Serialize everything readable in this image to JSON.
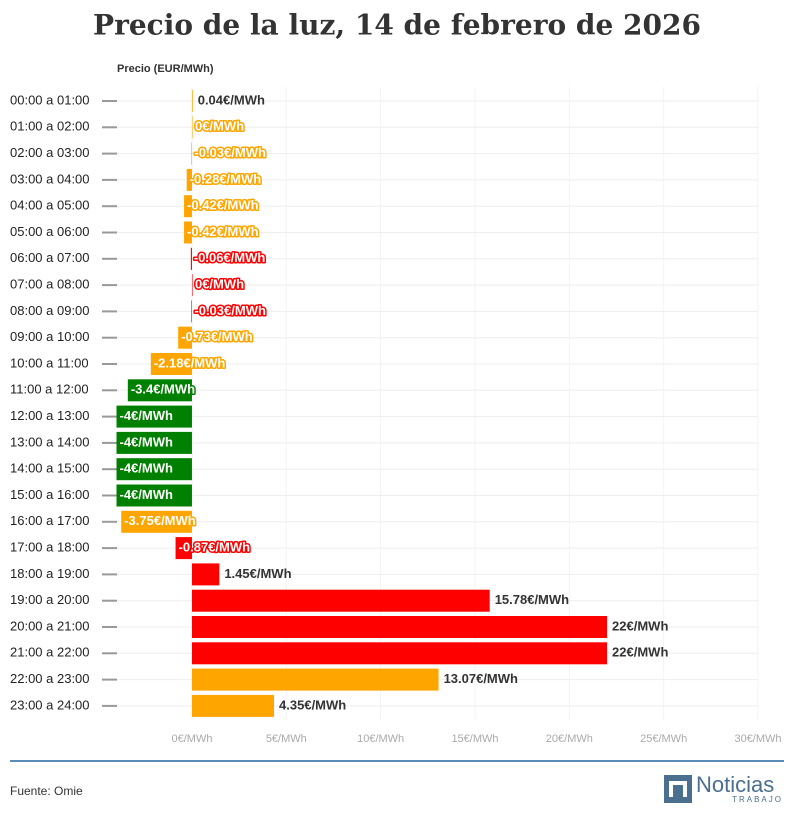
{
  "chart_data": {
    "type": "bar",
    "orientation": "horizontal",
    "title": "Precio de la luz, 14 de febrero de 2026",
    "x_label": "Precio (EUR/MWh)",
    "categories": [
      "00:00 a 01:00",
      "01:00 a 02:00",
      "02:00 a 03:00",
      "03:00 a 04:00",
      "04:00 a 05:00",
      "05:00 a 06:00",
      "06:00 a 07:00",
      "07:00 a 08:00",
      "08:00 a 09:00",
      "09:00 a 10:00",
      "10:00 a 11:00",
      "11:00 a 12:00",
      "12:00 a 13:00",
      "13:00 a 14:00",
      "14:00 a 15:00",
      "15:00 a 16:00",
      "16:00 a 17:00",
      "17:00 a 18:00",
      "18:00 a 19:00",
      "19:00 a 20:00",
      "20:00 a 21:00",
      "21:00 a 22:00",
      "22:00 a 23:00",
      "23:00 a 24:00"
    ],
    "values": [
      0.04,
      0,
      -0.03,
      -0.28,
      -0.42,
      -0.42,
      -0.06,
      0,
      -0.03,
      -0.73,
      -2.18,
      -3.4,
      -4,
      -4,
      -4,
      -4,
      -3.75,
      -0.87,
      1.45,
      15.78,
      22,
      22,
      13.07,
      4.35
    ],
    "value_labels": [
      "0.04€/MWh",
      "0€/MWh",
      "-0.03€/MWh",
      "-0.28€/MWh",
      "-0.42€/MWh",
      "-0.42€/MWh",
      "-0.06€/MWh",
      "0€/MWh",
      "-0.03€/MWh",
      "-0.73€/MWh",
      "-2.18€/MWh",
      "-3.4€/MWh",
      "-4€/MWh",
      "-4€/MWh",
      "-4€/MWh",
      "-4€/MWh",
      "-3.75€/MWh",
      "-0.87€/MWh",
      "1.45€/MWh",
      "15.78€/MWh",
      "22€/MWh",
      "22€/MWh",
      "13.07€/MWh",
      "4.35€/MWh"
    ],
    "colors": [
      "#ffa500",
      "#ffa500",
      "#ffa500",
      "#ffa500",
      "#ffa500",
      "#ffa500",
      "#ff0000",
      "#ff0000",
      "#ff0000",
      "#ffa500",
      "#ffa500",
      "#008000",
      "#008000",
      "#008000",
      "#008000",
      "#008000",
      "#ffa500",
      "#ff0000",
      "#ff0000",
      "#ff0000",
      "#ff0000",
      "#ff0000",
      "#ffa500",
      "#ffa500"
    ],
    "xlim": [
      -4,
      30
    ],
    "xticks": [
      {
        "value": 0,
        "label": "0€/MWh"
      },
      {
        "value": 5,
        "label": "5€/MWh"
      },
      {
        "value": 10,
        "label": "10€/MWh"
      },
      {
        "value": 15,
        "label": "15€/MWh"
      },
      {
        "value": 20,
        "label": "20€/MWh"
      },
      {
        "value": 25,
        "label": "25€/MWh"
      },
      {
        "value": 30,
        "label": "30€/MWh"
      }
    ],
    "grid": true,
    "source": "Fuente: Omie",
    "brand": "Noticias",
    "brand_sub": "TRABAJO"
  }
}
